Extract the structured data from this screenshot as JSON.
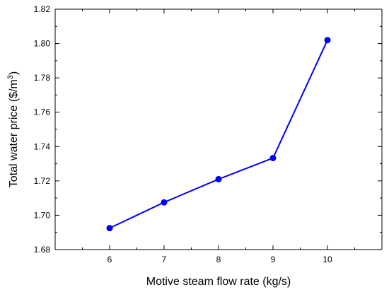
{
  "chart_data": {
    "type": "line",
    "xlabel": "Motive steam flow rate (kg/s)",
    "ylabel_main": "Total water price ($/m",
    "ylabel_sup": "3",
    "ylabel_end": ")",
    "x": [
      6,
      7,
      8,
      9,
      10
    ],
    "xlim": [
      5,
      11
    ],
    "xticks": [
      6,
      7,
      8,
      9,
      10
    ],
    "ylim": [
      1.68,
      1.82
    ],
    "yticks": [
      1.68,
      1.7,
      1.72,
      1.74,
      1.76,
      1.78,
      1.8,
      1.82
    ],
    "ytick_labels": [
      "1.68",
      "1.70",
      "1.72",
      "1.74",
      "1.76",
      "1.78",
      "1.80",
      "1.82"
    ],
    "series": [
      {
        "values": [
          1.6925,
          1.7075,
          1.721,
          1.7333,
          1.802
        ],
        "color": "#0000ff",
        "marker": "circle"
      }
    ],
    "grid": false,
    "legend": "none"
  }
}
